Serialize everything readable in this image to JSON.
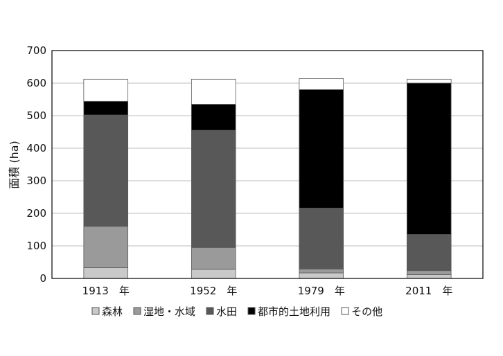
{
  "chart_data": {
    "type": "bar",
    "stacked": true,
    "categories": [
      "1913　年",
      "1952　年",
      "1979　年",
      "2011　年"
    ],
    "series": [
      {
        "name": "森林",
        "color": "#c9c9c9",
        "values": [
          33,
          28,
          17,
          12
        ]
      },
      {
        "name": "湿地・水域",
        "color": "#9a9a9a",
        "values": [
          127,
          67,
          12,
          12
        ]
      },
      {
        "name": "水田",
        "color": "#585858",
        "values": [
          342,
          360,
          187,
          111
        ]
      },
      {
        "name": "都市的土地利用",
        "color": "#000000",
        "values": [
          42,
          80,
          364,
          465
        ]
      },
      {
        "name": "その他",
        "color": "#ffffff",
        "values": [
          68,
          77,
          34,
          12
        ]
      }
    ],
    "ylabel": "面積 (ha)",
    "xlabel": "",
    "title": "",
    "ylim": [
      0,
      700
    ],
    "yticks": [
      0,
      100,
      200,
      300,
      400,
      500,
      600,
      700
    ],
    "grid": true,
    "legend_position": "bottom"
  }
}
